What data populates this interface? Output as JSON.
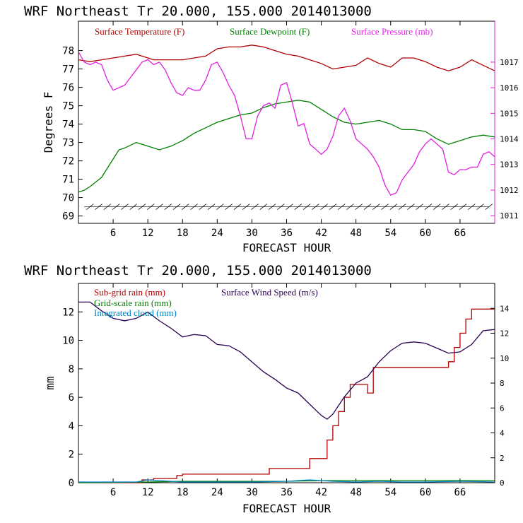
{
  "chart_data": [
    {
      "type": "line",
      "title": "WRF  Northeast Tr  20.000, 155.000  2014013000",
      "xlabel": "FORECAST HOUR",
      "ylabel": "Degrees F",
      "xlim": [
        0,
        72
      ],
      "ylim": [
        68.6,
        79.6
      ],
      "y2lim": [
        1010.7,
        1018.6
      ],
      "xticks": [
        "6",
        "12",
        "18",
        "24",
        "30",
        "36",
        "42",
        "48",
        "54",
        "60",
        "66"
      ],
      "yticks": [
        "69",
        "70",
        "71",
        "72",
        "73",
        "74",
        "75",
        "76",
        "77",
        "78"
      ],
      "y2ticks": [
        "1011",
        "1012",
        "1013",
        "1014",
        "1015",
        "1016",
        "1017"
      ],
      "grid": false,
      "legend_placement": "top",
      "series": [
        {
          "name": "Surface Temperature (F)",
          "color": "#b00000",
          "axis": "left",
          "x": [
            0,
            2,
            4,
            6,
            8,
            10,
            12,
            13,
            14,
            16,
            18,
            20,
            22,
            24,
            26,
            28,
            30,
            32,
            34,
            36,
            38,
            40,
            42,
            44,
            46,
            48,
            50,
            52,
            54,
            56,
            58,
            60,
            62,
            64,
            66,
            68,
            70,
            72
          ],
          "y": [
            77.5,
            77.4,
            77.5,
            77.6,
            77.7,
            77.8,
            77.6,
            77.5,
            77.5,
            77.5,
            77.5,
            77.6,
            77.7,
            78.1,
            78.2,
            78.2,
            78.3,
            78.2,
            78.0,
            77.8,
            77.7,
            77.5,
            77.3,
            77.0,
            77.1,
            77.2,
            77.6,
            77.3,
            77.1,
            77.6,
            77.6,
            77.4,
            77.1,
            76.9,
            77.1,
            77.5,
            77.2,
            76.9
          ]
        },
        {
          "name": "Surface Dewpoint (F)",
          "color": "#008000",
          "axis": "left",
          "x": [
            0,
            1,
            2,
            4,
            5,
            6,
            7,
            8,
            10,
            12,
            14,
            16,
            18,
            20,
            22,
            24,
            26,
            28,
            30,
            32,
            34,
            36,
            38,
            40,
            42,
            44,
            46,
            48,
            50,
            52,
            54,
            56,
            58,
            60,
            62,
            64,
            66,
            68,
            70,
            72
          ],
          "y": [
            70.3,
            70.4,
            70.6,
            71.1,
            71.6,
            72.1,
            72.6,
            72.7,
            73.0,
            72.8,
            72.6,
            72.8,
            73.1,
            73.5,
            73.8,
            74.1,
            74.3,
            74.5,
            74.6,
            74.9,
            75.1,
            75.2,
            75.3,
            75.2,
            74.8,
            74.4,
            74.1,
            74.0,
            74.1,
            74.2,
            74.0,
            73.7,
            73.7,
            73.6,
            73.2,
            72.9,
            73.1,
            73.3,
            73.4,
            73.3
          ]
        },
        {
          "name": "Surface Pressure (mb)",
          "color": "#e020e0",
          "axis": "right",
          "x": [
            0,
            1,
            2,
            3,
            4,
            5,
            6,
            7,
            8,
            9,
            10,
            11,
            12,
            13,
            14,
            15,
            16,
            17,
            18,
            19,
            20,
            21,
            22,
            23,
            24,
            25,
            26,
            27,
            28,
            29,
            30,
            31,
            32,
            33,
            34,
            35,
            36,
            37,
            38,
            39,
            40,
            41,
            42,
            43,
            44,
            45,
            46,
            47,
            48,
            49,
            50,
            51,
            52,
            53,
            54,
            55,
            56,
            57,
            58,
            59,
            60,
            61,
            62,
            63,
            64,
            65,
            66,
            67,
            68,
            69,
            70,
            71,
            72
          ],
          "y": [
            1017.4,
            1017.0,
            1016.9,
            1017.0,
            1016.9,
            1016.3,
            1015.9,
            1016.0,
            1016.1,
            1016.4,
            1016.7,
            1017.0,
            1017.1,
            1016.9,
            1017.0,
            1016.7,
            1016.2,
            1015.8,
            1015.7,
            1016.0,
            1015.9,
            1015.9,
            1016.3,
            1016.9,
            1017.0,
            1016.6,
            1016.1,
            1015.7,
            1014.9,
            1014.0,
            1014.0,
            1014.9,
            1015.3,
            1015.4,
            1015.2,
            1016.1,
            1016.2,
            1015.4,
            1014.5,
            1014.6,
            1013.8,
            1013.6,
            1013.4,
            1013.6,
            1014.1,
            1014.9,
            1015.2,
            1014.7,
            1014.0,
            1013.8,
            1013.6,
            1013.3,
            1012.9,
            1012.2,
            1011.8,
            1011.9,
            1012.4,
            1012.7,
            1013.0,
            1013.5,
            1013.8,
            1014.0,
            1013.8,
            1013.6,
            1012.7,
            1012.6,
            1012.8,
            1012.8,
            1012.9,
            1012.9,
            1013.4,
            1013.5,
            1013.3
          ]
        }
      ],
      "wind_barb_color": "#000000"
    },
    {
      "type": "line",
      "title": "WRF  Northeast Tr  20.000, 155.000  2014013000",
      "xlabel": "FORECAST HOUR",
      "ylabel": "mm",
      "xlim": [
        0,
        72
      ],
      "ylim": [
        0,
        14
      ],
      "y2lim": [
        0,
        16
      ],
      "xticks": [
        "6",
        "12",
        "18",
        "24",
        "30",
        "36",
        "42",
        "48",
        "54",
        "60",
        "66"
      ],
      "yticks": [
        "0",
        "2",
        "4",
        "6",
        "8",
        "10",
        "12"
      ],
      "y2ticks": [
        "0",
        "2",
        "4",
        "6",
        "8",
        "10",
        "12",
        "14"
      ],
      "grid": false,
      "legend_placement": "top-left",
      "series": [
        {
          "name": "Sub-grid rain (mm)",
          "color": "#b00000",
          "axis": "left",
          "x": [
            0,
            11,
            11,
            13,
            13,
            17,
            17,
            18,
            18,
            21,
            21,
            33,
            33,
            37,
            37,
            40,
            40,
            43,
            43,
            44,
            44,
            45,
            45,
            46,
            46,
            47,
            47,
            48,
            48,
            50,
            50,
            51,
            51,
            55,
            55,
            56,
            56,
            64,
            64,
            65,
            65,
            66,
            66,
            67,
            67,
            68,
            68,
            72
          ],
          "y": [
            0,
            0,
            0.2,
            0.2,
            0.3,
            0.3,
            0.5,
            0.5,
            0.6,
            0.6,
            0.6,
            0.6,
            1.0,
            1.0,
            1.0,
            1.0,
            1.7,
            1.7,
            3.0,
            3.0,
            4.0,
            4.0,
            5.0,
            5.0,
            6.0,
            6.0,
            6.9,
            6.9,
            6.9,
            6.9,
            6.3,
            6.3,
            8.1,
            8.1,
            8.1,
            8.1,
            8.1,
            8.1,
            8.5,
            8.5,
            9.5,
            9.5,
            10.5,
            10.5,
            11.5,
            11.5,
            12.2,
            12.2
          ]
        },
        {
          "name": "Grid-scale rain (mm)",
          "color": "#008000",
          "axis": "left",
          "x": [
            0,
            12,
            18,
            24,
            30,
            36,
            42,
            48,
            54,
            60,
            66,
            72
          ],
          "y": [
            0,
            0.05,
            0.1,
            0.1,
            0.1,
            0.1,
            0.15,
            0.15,
            0.15,
            0.15,
            0.15,
            0.15
          ]
        },
        {
          "name": "Integrated cloud (mm)",
          "color": "#0080c0",
          "axis": "left",
          "x": [
            0,
            10,
            12,
            14,
            18,
            24,
            30,
            36,
            40,
            42,
            44,
            48,
            52,
            56,
            60,
            66,
            72
          ],
          "y": [
            0.05,
            0.05,
            0.2,
            0.15,
            0.05,
            0.05,
            0.05,
            0.1,
            0.2,
            0.15,
            0.1,
            0.05,
            0.1,
            0.05,
            0.05,
            0.1,
            0.05
          ]
        },
        {
          "name": "Surface Wind Speed (m/s)",
          "color": "#2a0050",
          "axis": "right",
          "x": [
            0,
            2,
            4,
            6,
            8,
            10,
            12,
            14,
            16,
            18,
            20,
            22,
            24,
            26,
            28,
            30,
            32,
            34,
            36,
            38,
            40,
            42,
            43,
            44,
            46,
            48,
            50,
            52,
            54,
            56,
            58,
            60,
            62,
            64,
            66,
            68,
            70,
            72
          ],
          "y": [
            14.5,
            14.5,
            13.8,
            13.2,
            13.0,
            13.2,
            13.7,
            13.0,
            12.4,
            11.7,
            11.9,
            11.8,
            11.1,
            11.0,
            10.5,
            9.7,
            8.9,
            8.3,
            7.6,
            7.2,
            6.3,
            5.4,
            5.1,
            5.5,
            6.9,
            8.0,
            8.5,
            9.7,
            10.6,
            11.2,
            11.3,
            11.2,
            10.8,
            10.4,
            10.5,
            11.1,
            12.2,
            12.3
          ]
        }
      ]
    }
  ]
}
